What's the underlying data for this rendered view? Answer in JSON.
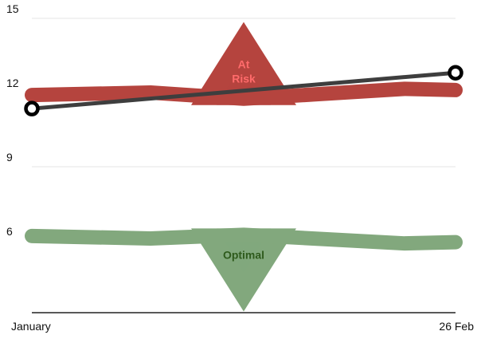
{
  "chart_data": {
    "type": "line",
    "title": "",
    "xlabel": "",
    "ylabel": "",
    "x_tick_labels": [
      "January",
      "26 Feb"
    ],
    "y_ticks": [
      6,
      9,
      12,
      15
    ],
    "y_tick_labels": [
      "6",
      "9",
      "12",
      "15"
    ],
    "ylim": [
      3.1,
      15
    ],
    "grid": "horizontal",
    "bands": [
      {
        "label": "At Risk",
        "label_lines": [
          "At",
          "Risk"
        ],
        "color": "#b5443e",
        "label_color": "#ff6b6b",
        "line_x": [
          0,
          0.28,
          0.5,
          0.88,
          1
        ],
        "line_values": [
          11.9,
          12.0,
          11.75,
          12.15,
          12.1
        ],
        "marker": {
          "direction": "up",
          "x": 0.5,
          "peak": 14.85
        }
      },
      {
        "label": "Optimal",
        "label_lines": [
          "Optimal"
        ],
        "color": "#82a87d",
        "label_color": "#2e5a1c",
        "line_x": [
          0,
          0.28,
          0.5,
          0.88,
          1
        ],
        "line_values": [
          6.2,
          6.1,
          6.25,
          5.9,
          5.95
        ],
        "marker": {
          "direction": "down",
          "x": 0.5,
          "peak": 3.15
        }
      }
    ],
    "series": [
      {
        "x": [
          0,
          1
        ],
        "values": [
          11.35,
          12.8
        ],
        "color": "#3e3e3e"
      }
    ]
  }
}
